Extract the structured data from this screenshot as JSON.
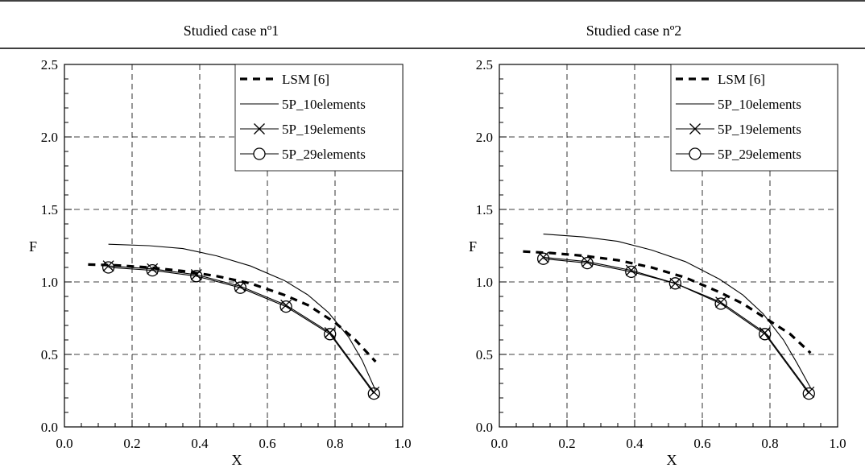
{
  "chart_data": [
    {
      "type": "line",
      "title": "Studied case nº1",
      "xlabel": "X",
      "ylabel": "F",
      "xlim": [
        0.0,
        1.0
      ],
      "ylim": [
        0.0,
        2.5
      ],
      "x_ticks": [
        "0.0",
        "0.2",
        "0.4",
        "0.6",
        "0.8",
        "1.0"
      ],
      "y_ticks": [
        "0.0",
        "0.5",
        "1.0",
        "1.5",
        "2.0",
        "2.5"
      ],
      "grid": true,
      "legend_position": "top-right",
      "series": [
        {
          "name": "LSM [6]",
          "style": "dashed",
          "x": [
            0.07,
            0.15,
            0.25,
            0.35,
            0.45,
            0.55,
            0.65,
            0.72,
            0.8,
            0.86,
            0.92
          ],
          "y": [
            1.12,
            1.115,
            1.1,
            1.075,
            1.04,
            0.99,
            0.91,
            0.84,
            0.72,
            0.6,
            0.45
          ]
        },
        {
          "name": "5P_10elements",
          "style": "solid",
          "x": [
            0.13,
            0.25,
            0.35,
            0.45,
            0.55,
            0.65,
            0.72,
            0.78,
            0.84,
            0.88,
            0.92
          ],
          "y": [
            1.26,
            1.25,
            1.23,
            1.18,
            1.11,
            1.01,
            0.91,
            0.79,
            0.62,
            0.46,
            0.25
          ]
        },
        {
          "name": "5P_19elements",
          "style": "cross",
          "x": [
            0.13,
            0.26,
            0.39,
            0.52,
            0.655,
            0.785,
            0.915
          ],
          "y": [
            1.11,
            1.09,
            1.05,
            0.97,
            0.84,
            0.65,
            0.24
          ]
        },
        {
          "name": "5P_29elements",
          "style": "circle",
          "x": [
            0.13,
            0.26,
            0.39,
            0.52,
            0.655,
            0.785,
            0.915
          ],
          "y": [
            1.1,
            1.08,
            1.04,
            0.96,
            0.83,
            0.64,
            0.23
          ]
        }
      ]
    },
    {
      "type": "line",
      "title": "Studied case nº2",
      "xlabel": "X",
      "ylabel": "F",
      "xlim": [
        0.0,
        1.0
      ],
      "ylim": [
        0.0,
        2.5
      ],
      "x_ticks": [
        "0.0",
        "0.2",
        "0.4",
        "0.6",
        "0.8",
        "1.0"
      ],
      "y_ticks": [
        "0.0",
        "0.5",
        "1.0",
        "1.5",
        "2.0",
        "2.5"
      ],
      "grid": true,
      "legend_position": "top-right",
      "series": [
        {
          "name": "LSM [6]",
          "style": "dashed",
          "x": [
            0.07,
            0.15,
            0.25,
            0.35,
            0.45,
            0.55,
            0.65,
            0.72,
            0.8,
            0.86,
            0.92
          ],
          "y": [
            1.21,
            1.2,
            1.18,
            1.15,
            1.1,
            1.03,
            0.93,
            0.85,
            0.73,
            0.64,
            0.51
          ]
        },
        {
          "name": "5P_10elements",
          "style": "solid",
          "x": [
            0.13,
            0.25,
            0.35,
            0.45,
            0.55,
            0.65,
            0.72,
            0.78,
            0.84,
            0.88,
            0.92
          ],
          "y": [
            1.33,
            1.31,
            1.28,
            1.22,
            1.14,
            1.02,
            0.91,
            0.78,
            0.6,
            0.44,
            0.27
          ]
        },
        {
          "name": "5P_19elements",
          "style": "cross",
          "x": [
            0.13,
            0.26,
            0.39,
            0.52,
            0.655,
            0.785,
            0.915
          ],
          "y": [
            1.17,
            1.14,
            1.08,
            0.99,
            0.86,
            0.65,
            0.24
          ]
        },
        {
          "name": "5P_29elements",
          "style": "circle",
          "x": [
            0.13,
            0.26,
            0.39,
            0.52,
            0.655,
            0.785,
            0.915
          ],
          "y": [
            1.16,
            1.13,
            1.07,
            0.99,
            0.85,
            0.64,
            0.23
          ]
        }
      ]
    }
  ]
}
